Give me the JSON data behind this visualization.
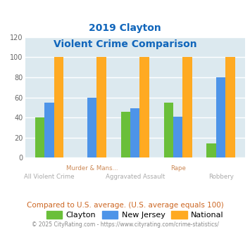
{
  "title_line1": "2019 Clayton",
  "title_line2": "Violent Crime Comparison",
  "categories": [
    "All Violent Crime",
    "Murder & Mans...",
    "Aggravated Assault",
    "Rape",
    "Robbery"
  ],
  "cat_labels_row1": [
    "",
    "Murder & Mans...",
    "",
    "Rape",
    ""
  ],
  "cat_labels_row2": [
    "All Violent Crime",
    "",
    "Aggravated Assault",
    "",
    "Robbery"
  ],
  "series": {
    "Clayton": [
      40,
      0,
      46,
      55,
      14
    ],
    "New Jersey": [
      55,
      60,
      49,
      41,
      80
    ],
    "National": [
      100,
      100,
      100,
      100,
      100
    ]
  },
  "colors": {
    "Clayton": "#6abf3a",
    "New Jersey": "#4d94e8",
    "National": "#ffaa22"
  },
  "ylim": [
    0,
    120
  ],
  "yticks": [
    0,
    20,
    40,
    60,
    80,
    100,
    120
  ],
  "bg_color": "#dce9ef",
  "grid_color": "#ffffff",
  "title_color": "#1166bb",
  "xlabel_color_row1": "#cc8855",
  "xlabel_color_row2": "#aaaaaa",
  "footer_text": "Compared to U.S. average. (U.S. average equals 100)",
  "footer_color": "#cc6622",
  "copyright_text": "© 2025 CityRating.com - https://www.cityrating.com/crime-statistics/",
  "copyright_color": "#888888"
}
